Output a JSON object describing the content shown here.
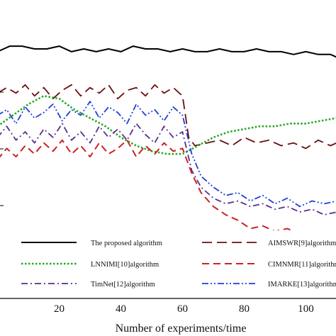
{
  "chart_data": {
    "type": "line",
    "title": "",
    "xlabel": "Number of experiments/time",
    "ylabel": "",
    "xlim": [
      0,
      110
    ],
    "ylim": [
      0,
      100
    ],
    "x_ticks": [
      20,
      40,
      60,
      80,
      100
    ],
    "grid": false,
    "legend_position": "bottom",
    "series": [
      {
        "name": "The proposed algorithm",
        "color": "#000000",
        "dash": "solid",
        "x": [
          0,
          4,
          8,
          12,
          16,
          20,
          24,
          28,
          32,
          36,
          40,
          44,
          48,
          52,
          56,
          60,
          64,
          68,
          72,
          76,
          80,
          84,
          88,
          92,
          96,
          100,
          104,
          108,
          110
        ],
        "y": [
          89,
          91,
          91,
          90,
          90,
          91,
          89,
          90,
          89,
          90,
          89,
          91,
          90,
          90,
          89,
          90,
          89,
          89,
          90,
          89,
          89,
          90,
          89,
          89,
          88,
          89,
          88,
          88,
          87
        ]
      },
      {
        "name": "AIMSWR[9]algorithm",
        "color": "#6b0f0f",
        "dash": "longdash",
        "x": [
          0,
          3,
          6,
          9,
          12,
          15,
          18,
          21,
          24,
          27,
          30,
          33,
          36,
          39,
          42,
          45,
          48,
          51,
          54,
          57,
          60,
          62,
          64,
          68,
          72,
          76,
          80,
          84,
          88,
          92,
          96,
          100,
          104,
          108,
          110
        ],
        "y": [
          74,
          76,
          74,
          77,
          73,
          76,
          72,
          75,
          77,
          73,
          76,
          74,
          77,
          72,
          75,
          76,
          73,
          77,
          74,
          76,
          73,
          58,
          55,
          56,
          57,
          55,
          58,
          56,
          57,
          55,
          56,
          54,
          57,
          55,
          56
        ]
      },
      {
        "name": "LNNIMI[10]algorithm",
        "color": "#22aa22",
        "dash": "dotted",
        "x": [
          0,
          5,
          10,
          15,
          20,
          25,
          30,
          35,
          40,
          45,
          50,
          55,
          60,
          65,
          70,
          75,
          80,
          85,
          90,
          95,
          100,
          105,
          110
        ],
        "y": [
          62,
          66,
          70,
          73,
          72,
          68,
          65,
          62,
          58,
          55,
          53,
          52,
          52,
          55,
          58,
          60,
          61,
          62,
          62,
          63,
          63,
          64,
          65
        ]
      },
      {
        "name": "CIMNMR[11]algorithm",
        "color": "#cc2222",
        "dash": "dashed",
        "x": [
          0,
          3,
          6,
          9,
          12,
          15,
          18,
          21,
          24,
          27,
          30,
          33,
          36,
          39,
          42,
          45,
          48,
          51,
          54,
          57,
          60,
          63,
          66,
          70,
          74,
          78,
          82,
          86,
          90,
          94,
          98,
          102,
          106,
          110
        ],
        "y": [
          50,
          54,
          51,
          55,
          52,
          56,
          53,
          57,
          52,
          55,
          51,
          56,
          52,
          54,
          57,
          51,
          55,
          52,
          56,
          53,
          54,
          45,
          38,
          33,
          30,
          28,
          25,
          26,
          24,
          25,
          23,
          24,
          22,
          23
        ]
      },
      {
        "name": "TimNet[12]algorithm",
        "color": "#5b2d8c",
        "dash": "dashdot",
        "x": [
          0,
          3,
          6,
          9,
          12,
          15,
          18,
          21,
          24,
          27,
          30,
          33,
          36,
          39,
          42,
          45,
          48,
          51,
          54,
          57,
          60,
          63,
          66,
          70,
          74,
          78,
          82,
          86,
          90,
          94,
          98,
          102,
          106,
          110
        ],
        "y": [
          58,
          62,
          57,
          60,
          56,
          61,
          58,
          63,
          57,
          60,
          56,
          62,
          58,
          61,
          57,
          63,
          59,
          56,
          62,
          58,
          60,
          46,
          40,
          36,
          34,
          35,
          33,
          34,
          32,
          33,
          31,
          32,
          30,
          31
        ]
      },
      {
        "name": "IMARKE[13]algorithm",
        "color": "#1f3fd6",
        "dash": "dashdotdot",
        "x": [
          0,
          3,
          6,
          9,
          12,
          15,
          18,
          21,
          24,
          27,
          30,
          33,
          36,
          39,
          42,
          45,
          48,
          51,
          54,
          57,
          60,
          63,
          66,
          70,
          74,
          78,
          82,
          86,
          90,
          94,
          98,
          102,
          106,
          110
        ],
        "y": [
          66,
          68,
          63,
          69,
          65,
          67,
          70,
          64,
          68,
          66,
          71,
          65,
          69,
          67,
          63,
          70,
          66,
          68,
          64,
          69,
          66,
          52,
          44,
          40,
          37,
          38,
          35,
          37,
          34,
          36,
          33,
          35,
          34,
          35
        ]
      }
    ]
  }
}
